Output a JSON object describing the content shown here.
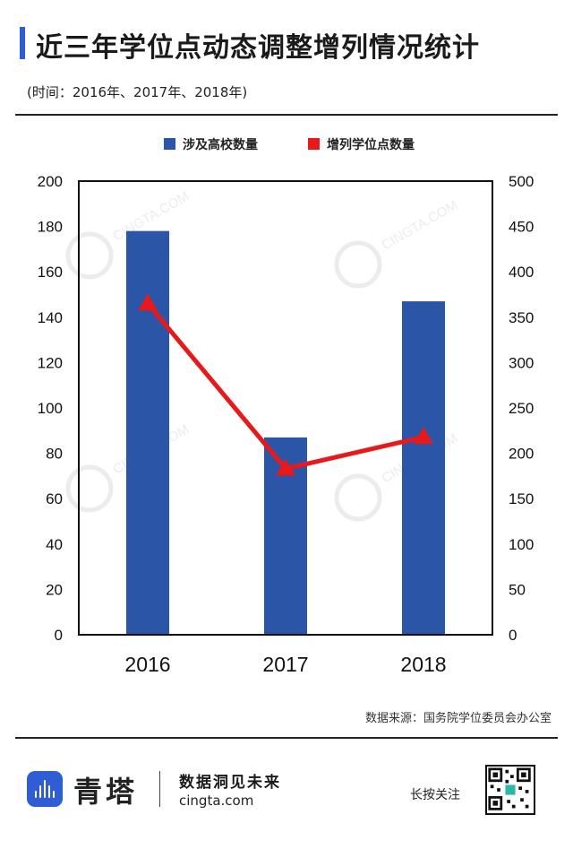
{
  "header": {
    "title": "近三年学位点动态调整增列情况统计",
    "subtitle": "(时间：2016年、2017年、2018年)"
  },
  "legend": {
    "bars_label": "涉及高校数量",
    "line_label": "增列学位点数量"
  },
  "watermark": "CINGTA.COM",
  "source": "数据来源：国务院学位委员会办公室",
  "footer": {
    "brand": "青塔",
    "slogan": "数据洞见未来",
    "site": "cingta.com",
    "follow": "长按关注"
  },
  "colors": {
    "accent": "#2f5dd4",
    "bar": "#2b55a6",
    "line": "#e8191a"
  },
  "chart_data": {
    "type": "bar",
    "categories": [
      "2016",
      "2017",
      "2018"
    ],
    "series": [
      {
        "name": "涉及高校数量",
        "type": "bar",
        "axis": "left",
        "values": [
          178,
          87,
          147
        ]
      },
      {
        "name": "增列学位点数量",
        "type": "line",
        "axis": "right",
        "values": [
          365,
          183,
          218
        ]
      }
    ],
    "y_left": {
      "ylim": [
        0,
        200
      ],
      "ticks": [
        0,
        20,
        40,
        60,
        80,
        100,
        120,
        140,
        160,
        180,
        200
      ]
    },
    "y_right": {
      "ylim": [
        0,
        500
      ],
      "ticks": [
        0,
        50,
        100,
        150,
        200,
        250,
        300,
        350,
        400,
        450,
        500
      ]
    },
    "legend_position": "top",
    "grid": false
  }
}
